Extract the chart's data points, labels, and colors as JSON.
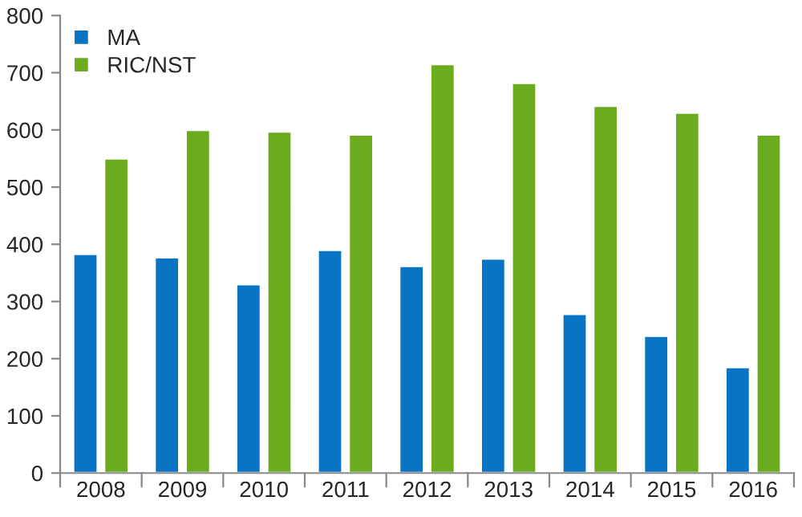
{
  "chart_data": {
    "type": "bar",
    "categories": [
      "2008",
      "2009",
      "2010",
      "2011",
      "2012",
      "2013",
      "2014",
      "2015",
      "2016"
    ],
    "series": [
      {
        "name": "MA",
        "color": "#0a74c4",
        "values": [
          383,
          377,
          330,
          390,
          362,
          375,
          278,
          240,
          185
        ]
      },
      {
        "name": "RIC/NST",
        "color": "#6aac1e",
        "values": [
          550,
          600,
          597,
          592,
          715,
          682,
          642,
          630,
          592
        ]
      }
    ],
    "ylim": [
      0,
      800
    ],
    "yticks": [
      0,
      100,
      200,
      300,
      400,
      500,
      600,
      700,
      800
    ],
    "grid": false,
    "legend": "top left"
  }
}
